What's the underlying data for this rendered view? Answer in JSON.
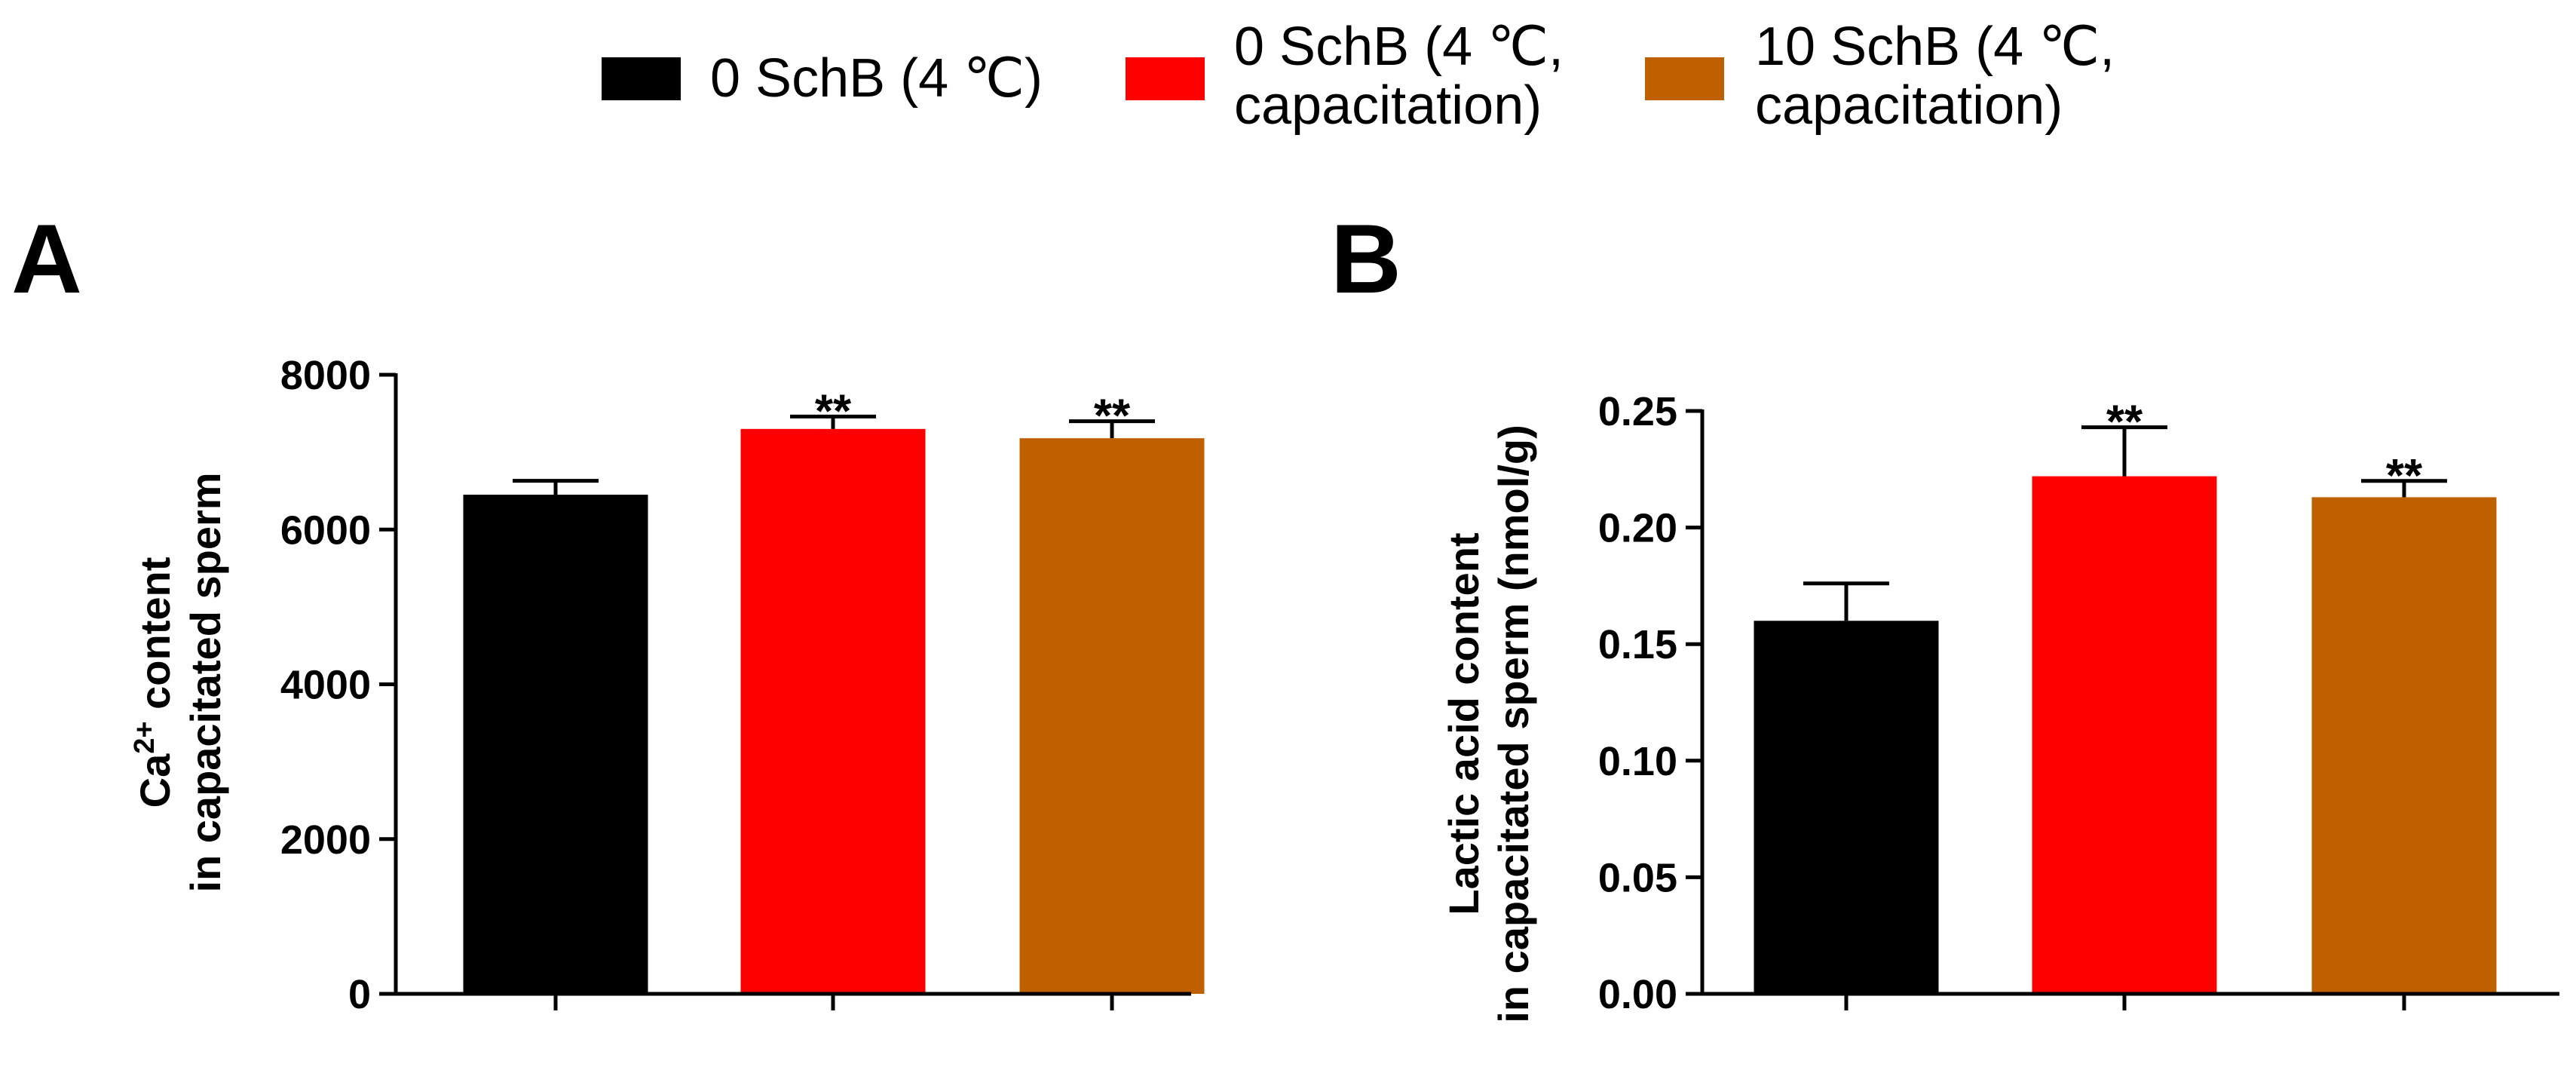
{
  "legend": {
    "items": [
      {
        "label_lines": [
          "0 SchB (4 ℃)"
        ],
        "color": "#000000"
      },
      {
        "label_lines": [
          "0 SchB (4 ℃,",
          "capacitation)"
        ],
        "color": "#ff0000"
      },
      {
        "label_lines": [
          "10 SchB (4 ℃,",
          "capacitation)"
        ],
        "color": "#bf6000"
      }
    ]
  },
  "chart_data": [
    {
      "type": "bar",
      "panel_label": "A",
      "categories": [
        "0 SchB (4 ℃)",
        "0 SchB (4 ℃, capacitation)",
        "10 SchB (4 ℃, capacitation)"
      ],
      "values": [
        6450,
        7300,
        7180
      ],
      "errors": [
        180,
        160,
        220
      ],
      "significance": [
        "",
        "**",
        "**"
      ],
      "colors": [
        "#000000",
        "#ff0000",
        "#bf6000"
      ],
      "ylabel_lines": [
        "Ca2+ content",
        "in capacitated sperm"
      ],
      "ylim": [
        0,
        8000
      ],
      "yticks": [
        0,
        2000,
        4000,
        6000,
        8000
      ],
      "ytick_labels": [
        "0",
        "2000",
        "4000",
        "6000",
        "8000"
      ]
    },
    {
      "type": "bar",
      "panel_label": "B",
      "categories": [
        "0 SchB (4 ℃)",
        "0 SchB (4 ℃, capacitation)",
        "10 SchB (4 ℃, capacitation)"
      ],
      "values": [
        0.16,
        0.222,
        0.213
      ],
      "errors": [
        0.016,
        0.021,
        0.007
      ],
      "significance": [
        "",
        "**",
        "**"
      ],
      "colors": [
        "#000000",
        "#ff0000",
        "#bf6000"
      ],
      "ylabel_lines": [
        "Lactic acid content",
        "in capacitated sperm (nmol/g)"
      ],
      "ylim": [
        0,
        0.25
      ],
      "yticks": [
        0,
        0.05,
        0.1,
        0.15,
        0.2,
        0.25
      ],
      "ytick_labels": [
        "0.00",
        "0.05",
        "0.10",
        "0.15",
        "0.20",
        "0.25"
      ]
    }
  ]
}
